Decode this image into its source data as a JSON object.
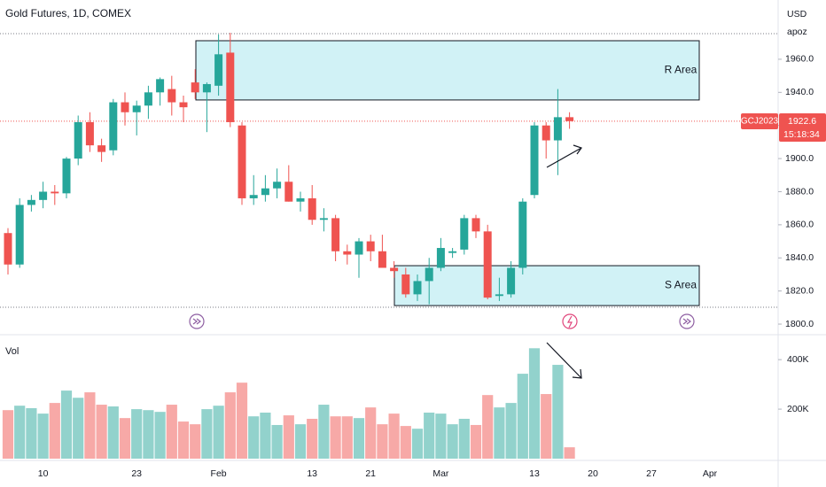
{
  "chart_data": {
    "type": "candlestick",
    "title": "Gold Futures, 1D, COMEX",
    "currency": "USD",
    "user": "apoz",
    "volume_label": "Vol",
    "symbol": "GCJ2023",
    "last_price": 1922.6,
    "last_price_label": "1922.6",
    "countdown": "15:18:34",
    "up_color": "#26a69a",
    "down_color": "#ef5350",
    "categories": [
      null,
      null,
      null,
      "10",
      null,
      null,
      null,
      null,
      null,
      null,
      null,
      "23",
      null,
      null,
      null,
      null,
      null,
      null,
      "Feb",
      null,
      null,
      null,
      null,
      null,
      null,
      null,
      "13",
      null,
      null,
      null,
      null,
      "21",
      null,
      null,
      null,
      null,
      null,
      "Mar",
      null,
      null,
      null,
      null,
      null,
      null,
      null,
      "13",
      null,
      null,
      null,
      null,
      "20",
      null,
      null,
      null,
      null,
      "27",
      null,
      null,
      null,
      null,
      "Apr"
    ],
    "open": [
      1855,
      1836,
      1872,
      1875,
      1880,
      1879,
      1900,
      1922,
      1908,
      1905,
      1934,
      1928,
      1932,
      1940,
      1942,
      1934,
      1946,
      1940,
      1944,
      1964,
      1920,
      1876,
      1878,
      1882,
      1886,
      1874,
      1876,
      1863,
      1864,
      1844,
      1842,
      1850,
      1844,
      1834,
      1830,
      1818,
      1826,
      1834,
      1843,
      1845,
      1864,
      1856,
      1817,
      1818,
      1834,
      1878,
      1920,
      1911,
      1925,
      null,
      null,
      null,
      null,
      null,
      null,
      null,
      null,
      null,
      null,
      null,
      null
    ],
    "high": [
      1858,
      1876,
      1878,
      1886,
      1884,
      1901,
      1926,
      1928,
      1912,
      1936,
      1940,
      1935,
      1944,
      1949,
      1950,
      1938,
      1954,
      1946,
      1975,
      1976,
      1922,
      1890,
      1890,
      1894,
      1896,
      1880,
      1884,
      1870,
      1866,
      1848,
      1852,
      1854,
      1854,
      1838,
      1834,
      1830,
      1840,
      1852,
      1846,
      1866,
      1866,
      1860,
      1828,
      1838,
      1876,
      1922,
      1922,
      1942,
      1928,
      null,
      null,
      null,
      null,
      null,
      null,
      null,
      null,
      null,
      null,
      null,
      null
    ],
    "low": [
      1830,
      1834,
      1868,
      1870,
      1872,
      1876,
      1896,
      1904,
      1898,
      1902,
      1920,
      1914,
      1924,
      1932,
      1926,
      1922,
      1936,
      1916,
      1938,
      1919,
      1872,
      1872,
      1874,
      1876,
      1874,
      1868,
      1860,
      1856,
      1838,
      1836,
      1828,
      1838,
      1836,
      1828,
      1816,
      1814,
      1812,
      1832,
      1840,
      1842,
      1852,
      1815,
      1814,
      1816,
      1830,
      1876,
      1900,
      1890,
      1918,
      null,
      null,
      null,
      null,
      null,
      null,
      null,
      null,
      null,
      null,
      null,
      null
    ],
    "close": [
      1836,
      1872,
      1875,
      1880,
      1879,
      1900,
      1922,
      1908,
      1904,
      1934,
      1928,
      1932,
      1940,
      1948,
      1934,
      1931,
      1940,
      1945,
      1963,
      1922,
      1876,
      1878,
      1882,
      1886,
      1874,
      1876,
      1863,
      1864,
      1844,
      1842,
      1850,
      1844,
      1834,
      1832,
      1818,
      1826,
      1834,
      1846,
      1844,
      1864,
      1856,
      1816,
      1818,
      1834,
      1874,
      1920,
      1911,
      1925,
      1922.6,
      null,
      null,
      null,
      null,
      null,
      null,
      null,
      null,
      null,
      null,
      null,
      null
    ],
    "volume": [
      196000,
      214000,
      204000,
      182000,
      225000,
      275000,
      246000,
      268000,
      218000,
      211000,
      164000,
      200000,
      196000,
      189000,
      218000,
      150000,
      139000,
      200000,
      214000,
      268000,
      307000,
      171000,
      186000,
      136000,
      175000,
      139000,
      161000,
      218000,
      171000,
      171000,
      164000,
      207000,
      139000,
      182000,
      132000,
      121000,
      186000,
      182000,
      139000,
      161000,
      136000,
      257000,
      207000,
      225000,
      343000,
      446000,
      261000,
      379000,
      46000,
      null,
      null,
      null,
      null,
      null,
      null,
      null,
      null,
      null,
      null,
      null,
      null
    ],
    "ylim": [
      1793.6,
      1995.8
    ],
    "yticks": [
      {
        "value": 1800,
        "label": "1800.0"
      },
      {
        "value": 1820,
        "label": "1820.0"
      },
      {
        "value": 1840,
        "label": "1840.0"
      },
      {
        "value": 1860,
        "label": "1860.0"
      },
      {
        "value": 1880,
        "label": "1880.0"
      },
      {
        "value": 1900,
        "label": "1900.0"
      },
      {
        "value": 1920,
        "label": "1920.0"
      },
      {
        "value": 1940,
        "label": "1940.0"
      },
      {
        "value": 1960,
        "label": "1960.0"
      }
    ],
    "volume_ylim": [
      0,
      490000
    ],
    "volume_yticks": [
      {
        "value": 200000,
        "label": "200K"
      },
      {
        "value": 400000,
        "label": "400K"
      }
    ],
    "hlines": [
      1975.5,
      1810.2
    ],
    "zones": [
      {
        "label": "R Area",
        "top": 1971.2,
        "bottom": 1935.4
      },
      {
        "label": "S Area",
        "top": 1835.3,
        "bottom": 1811.2
      }
    ]
  }
}
